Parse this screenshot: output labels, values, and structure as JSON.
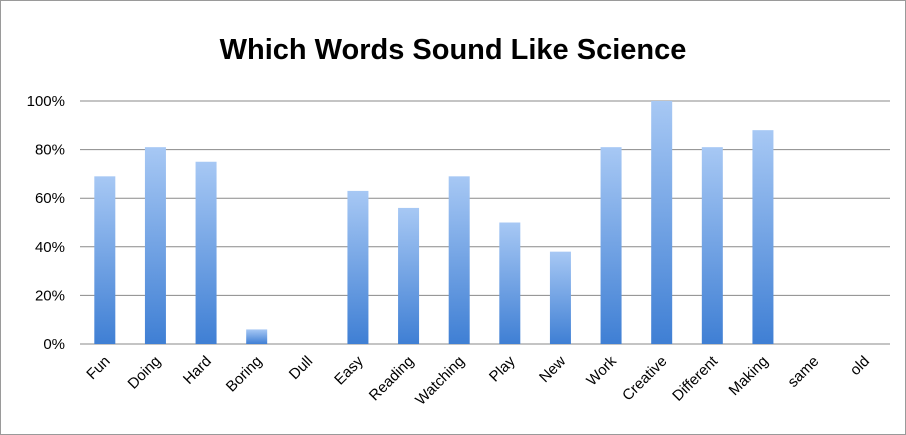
{
  "chart_data": {
    "type": "bar",
    "title": "Which Words Sound Like Science",
    "xlabel": "",
    "ylabel": "",
    "ylim": [
      0,
      1
    ],
    "yticks": [
      "0%",
      "20%",
      "40%",
      "60%",
      "80%",
      "100%"
    ],
    "grid": true,
    "legend": "none",
    "categories": [
      "Fun",
      "Doing",
      "Hard",
      "Boring",
      "Dull",
      "Easy",
      "Reading",
      "Watching",
      "Play",
      "New",
      "Work",
      "Creative",
      "Different",
      "Making",
      "same",
      "old"
    ],
    "values": [
      0.69,
      0.81,
      0.75,
      0.06,
      0,
      0.63,
      0.56,
      0.69,
      0.5,
      0.38,
      0.81,
      1.0,
      0.81,
      0.88,
      0,
      0
    ],
    "colors": {
      "bar_top": "#a7c8f4",
      "bar_bottom": "#3f7fd4",
      "grid": "#8a8a8a"
    }
  }
}
